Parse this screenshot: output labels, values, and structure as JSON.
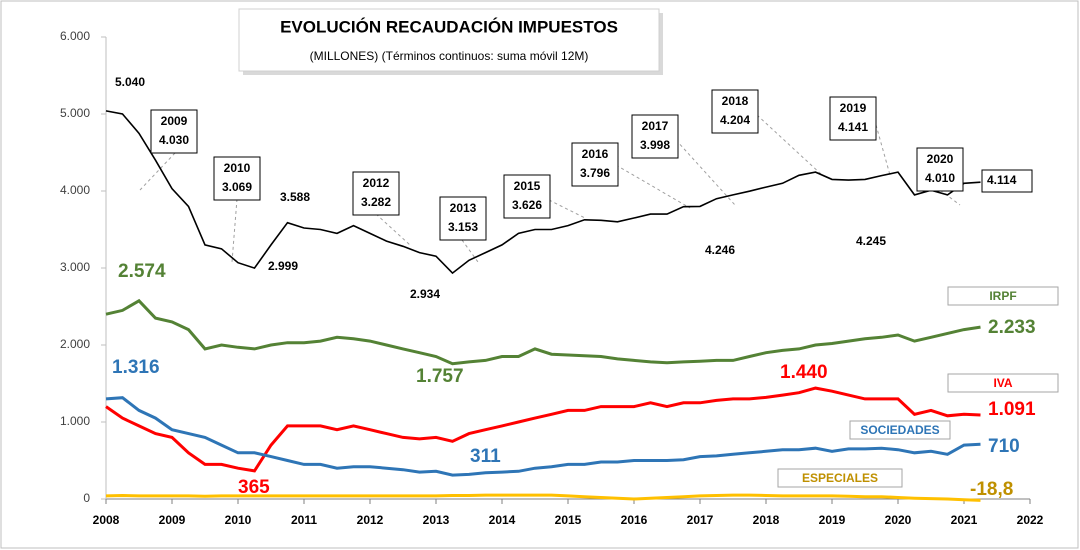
{
  "chart_data": {
    "type": "line",
    "title": "EVOLUCIÓN RECAUDACIÓN IMPUESTOS",
    "subtitle": "(MILLONES) (Términos continuos: suma móvil 12M)",
    "x": [
      2008,
      2008.25,
      2008.5,
      2008.75,
      2009,
      2009.25,
      2009.5,
      2009.75,
      2010,
      2010.25,
      2010.5,
      2010.75,
      2011,
      2011.25,
      2011.5,
      2011.75,
      2012,
      2012.25,
      2012.5,
      2012.75,
      2013,
      2013.25,
      2013.5,
      2013.75,
      2014,
      2014.25,
      2014.5,
      2014.75,
      2015,
      2015.25,
      2015.5,
      2015.75,
      2016,
      2016.25,
      2016.5,
      2016.75,
      2017,
      2017.25,
      2017.5,
      2017.75,
      2018,
      2018.25,
      2018.5,
      2018.75,
      2019,
      2019.25,
      2019.5,
      2019.75,
      2020,
      2020.25,
      2020.5,
      2020.75,
      2021,
      2021.25
    ],
    "series": [
      {
        "color": "#000000",
        "values": [
          5040,
          5000,
          4750,
          4400,
          4030,
          3800,
          3300,
          3250,
          3069,
          2999,
          3300,
          3588,
          3520,
          3500,
          3450,
          3550,
          3450,
          3350,
          3282,
          3200,
          3153,
          2934,
          3100,
          3200,
          3300,
          3450,
          3500,
          3500,
          3550,
          3626,
          3620,
          3600,
          3650,
          3700,
          3700,
          3796,
          3800,
          3900,
          3950,
          3998,
          4050,
          4100,
          4204,
          4246,
          4150,
          4141,
          4150,
          4200,
          4245,
          3950,
          4010,
          3950,
          4100,
          4114
        ]
      },
      {
        "name": "IRPF",
        "color": "#548235",
        "values": [
          2400,
          2450,
          2574,
          2350,
          2300,
          2200,
          1950,
          2000,
          1970,
          1950,
          2000,
          2030,
          2030,
          2050,
          2100,
          2080,
          2050,
          2000,
          1950,
          1900,
          1850,
          1757,
          1780,
          1800,
          1850,
          1850,
          1950,
          1880,
          1870,
          1860,
          1850,
          1820,
          1800,
          1780,
          1770,
          1780,
          1790,
          1800,
          1800,
          1850,
          1900,
          1930,
          1950,
          2000,
          2020,
          2050,
          2080,
          2100,
          2130,
          2050,
          2100,
          2150,
          2200,
          2233
        ]
      },
      {
        "name": "IVA",
        "color": "#ff0000",
        "values": [
          1200,
          1050,
          950,
          850,
          800,
          600,
          450,
          450,
          400,
          365,
          700,
          950,
          950,
          950,
          900,
          950,
          900,
          850,
          800,
          780,
          800,
          750,
          850,
          900,
          950,
          1000,
          1050,
          1100,
          1150,
          1150,
          1200,
          1200,
          1200,
          1250,
          1200,
          1250,
          1250,
          1280,
          1300,
          1300,
          1320,
          1350,
          1380,
          1440,
          1400,
          1350,
          1300,
          1300,
          1300,
          1100,
          1150,
          1080,
          1100,
          1091
        ]
      },
      {
        "name": "SOCIEDADES",
        "color": "#2e75b6",
        "values": [
          1300,
          1316,
          1150,
          1050,
          900,
          850,
          800,
          700,
          600,
          600,
          550,
          500,
          450,
          450,
          400,
          420,
          420,
          400,
          380,
          350,
          360,
          311,
          320,
          340,
          350,
          360,
          400,
          420,
          450,
          450,
          480,
          480,
          500,
          500,
          500,
          510,
          550,
          560,
          580,
          600,
          620,
          640,
          640,
          660,
          620,
          650,
          650,
          660,
          640,
          600,
          620,
          580,
          700,
          710
        ]
      },
      {
        "name": "ESPECIALES",
        "color": "#ffc000",
        "values": [
          40,
          45,
          40,
          40,
          40,
          40,
          35,
          40,
          40,
          40,
          40,
          40,
          40,
          40,
          40,
          40,
          40,
          40,
          40,
          40,
          40,
          45,
          45,
          50,
          50,
          50,
          50,
          50,
          40,
          30,
          20,
          10,
          0,
          10,
          20,
          30,
          40,
          45,
          50,
          50,
          45,
          40,
          40,
          40,
          40,
          35,
          30,
          30,
          20,
          10,
          5,
          0,
          -10,
          -18.8
        ]
      }
    ],
    "xlim": [
      2008,
      2022
    ],
    "xticks": [
      2008,
      2009,
      2010,
      2011,
      2012,
      2013,
      2014,
      2015,
      2016,
      2017,
      2018,
      2019,
      2020,
      2021,
      2022
    ],
    "ylim": [
      0,
      6000
    ],
    "yticks": [
      0,
      {
        "value": 1000,
        "label": "1.000"
      },
      {
        "value": 2000,
        "label": "2.000"
      },
      {
        "value": 3000,
        "label": "3.000"
      },
      {
        "value": 4000,
        "label": "4.000"
      },
      {
        "value": 5000,
        "label": "5.000"
      },
      {
        "value": 6000,
        "label": "6.000"
      }
    ],
    "grid": false,
    "annotations": [
      "5.040",
      "2.999",
      "3.588",
      "2.934",
      "4.246",
      "4.245",
      "4.114",
      "2.574",
      "1.757",
      "1.316",
      "311",
      "365",
      "1.440",
      "2.233",
      "1.091",
      "710",
      "-18,8"
    ],
    "boxes": [
      [
        "2009",
        "4.030"
      ],
      [
        "2010",
        "3.069"
      ],
      [
        "2012",
        "3.282"
      ],
      [
        "2013",
        "3.153"
      ],
      [
        "2015",
        "3.626"
      ],
      [
        "2016",
        "3.796"
      ],
      [
        "2017",
        "3.998"
      ],
      [
        "2018",
        "4.204"
      ],
      [
        "2019",
        "4.141"
      ],
      [
        "2020",
        "4.010"
      ]
    ]
  }
}
